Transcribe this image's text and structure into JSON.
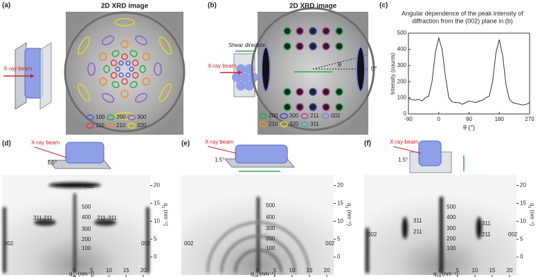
{
  "panels": {
    "a": {
      "label": "(a)",
      "title": "2D XRD image",
      "beam": "X-ray beam",
      "legend": [
        {
          "name": "100",
          "color": "#4b5fd0"
        },
        {
          "name": "200",
          "color": "#2aa84a"
        },
        {
          "name": "300",
          "color": "#8a5cc6"
        },
        {
          "name": "110",
          "color": "#e03a3a"
        },
        {
          "name": "210",
          "color": "#f08a2a"
        },
        {
          "name": "320",
          "color": "#e8d62a"
        }
      ]
    },
    "b": {
      "label": "(b)",
      "title": "2D XRD image",
      "beam": "X-ray beam",
      "shear": "Shear direction",
      "theta": "θ",
      "zero": "0°",
      "legend": [
        {
          "name": "200",
          "color": "#2aa84a"
        },
        {
          "name": "300",
          "color": "#3a4fb8"
        },
        {
          "name": "211",
          "color": "#c03aa0"
        },
        {
          "name": "002",
          "color": "#7a86e0"
        },
        {
          "name": "210",
          "color": "#f08a2a"
        },
        {
          "name": "320",
          "color": "#e8d62a"
        },
        {
          "name": "311",
          "color": "#2ab898"
        }
      ]
    },
    "c": {
      "label": "(c)"
    },
    "d": {
      "label": "(d)",
      "beam": "X-ray beam",
      "angle": "1.5°",
      "peaks": [
        "002",
        "500",
        "400",
        "300",
        "200",
        "100",
        "311",
        "211",
        "211",
        "311",
        "002",
        "002"
      ],
      "xlim": [
        -21,
        22
      ],
      "xticks": [
        0,
        5,
        10,
        15,
        20
      ],
      "ylim": [
        -5,
        23
      ],
      "yticks": [
        0,
        5,
        10,
        15,
        20
      ],
      "xlabel": {
        "q": "q",
        "sub": "xy",
        "unit": " (nm⁻¹)"
      },
      "ylabel": {
        "q": "q",
        "sub": "z",
        "unit": " (nm⁻¹)"
      }
    },
    "e": {
      "label": "(e)",
      "beam": "X-ray beam",
      "angle": "1.5°",
      "peaks": [
        "500",
        "400",
        "300",
        "200",
        "100",
        "002",
        "002"
      ],
      "xlim": [
        -22,
        22
      ],
      "xticks": [
        0,
        5,
        10,
        15,
        20
      ],
      "ylim": [
        -5,
        23
      ],
      "yticks": [
        0,
        5,
        10,
        15,
        20
      ],
      "xlabel": {
        "q": "q",
        "sub": "xy",
        "unit": " (nm⁻¹)"
      },
      "ylabel": {
        "q": "q",
        "sub": "z",
        "unit": " (nm⁻¹)"
      }
    },
    "f": {
      "label": "(f)",
      "beam": "X-ray beam",
      "angle": "1.5°",
      "peaks": [
        "500",
        "400",
        "300",
        "200",
        "100",
        "311",
        "211",
        "311",
        "211",
        "002",
        "002"
      ],
      "xlim": [
        -22,
        22
      ],
      "xticks": [
        0,
        5,
        10,
        15,
        20
      ],
      "ylim": [
        -5,
        23
      ],
      "yticks": [
        0,
        5,
        10,
        15,
        20
      ],
      "xlabel": {
        "q": "q",
        "sub": "xy",
        "unit": " (nm⁻¹)"
      },
      "ylabel": {
        "q": "q",
        "sub": "z",
        "unit": " (nm⁻¹)"
      }
    }
  },
  "chart_data": {
    "type": "line",
    "title": [
      "Angular dependence of the peak intensity of",
      "diffraction from the (002) plane in (b)"
    ],
    "x_label": "θ (°)",
    "y_label": "Intensity (counts)",
    "color": "#333333",
    "x": [
      -90,
      -80,
      -70,
      -60,
      -50,
      -40,
      -30,
      -20,
      -10,
      0,
      10,
      20,
      30,
      40,
      50,
      60,
      70,
      80,
      90,
      100,
      110,
      120,
      130,
      140,
      150,
      160,
      170,
      180,
      190,
      200,
      210,
      220,
      230,
      240,
      250,
      260,
      270
    ],
    "values": [
      95,
      90,
      85,
      90,
      80,
      100,
      110,
      200,
      380,
      470,
      400,
      230,
      100,
      75,
      70,
      70,
      60,
      70,
      80,
      75,
      70,
      80,
      85,
      100,
      110,
      200,
      380,
      460,
      360,
      180,
      90,
      70,
      65,
      60,
      55,
      60,
      70
    ],
    "xlim": [
      -90,
      270
    ],
    "xticks": [
      -90,
      0,
      90,
      180,
      270
    ],
    "ylim": [
      0,
      500
    ],
    "yticks": [
      0,
      100,
      200,
      300,
      400,
      500
    ]
  }
}
